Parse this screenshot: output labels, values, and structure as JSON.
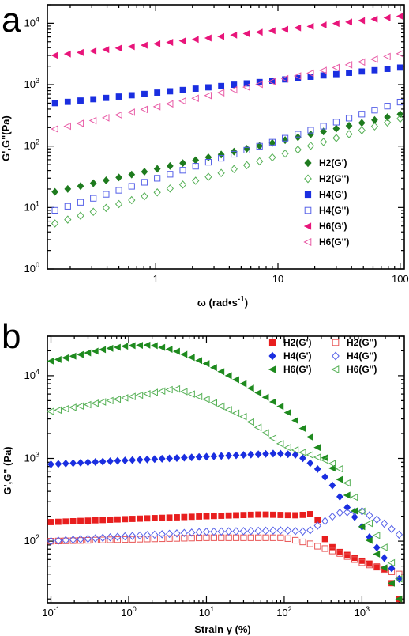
{
  "chart_data": [
    {
      "panel_label": "a",
      "type": "scatter",
      "xscale": "log",
      "yscale": "log",
      "xlim": [
        0.13,
        108
      ],
      "ylim": [
        1,
        20000
      ],
      "xlabel": "ω  (rad•s",
      "xlabel_sup": "-1",
      "xlabel_end": ")",
      "ylabel": "G',G\"(Pa)",
      "xticks": [
        {
          "value": 1,
          "base": "1",
          "exp": ""
        },
        {
          "value": 10,
          "base": "10",
          "exp": ""
        },
        {
          "value": 100,
          "base": "100",
          "exp": ""
        }
      ],
      "yticks": [
        {
          "value": 1,
          "base": "10",
          "exp": "0"
        },
        {
          "value": 10,
          "base": "10",
          "exp": "1"
        },
        {
          "value": 100,
          "base": "10",
          "exp": "2"
        },
        {
          "value": 1000,
          "base": "10",
          "exp": "3"
        },
        {
          "value": 10000,
          "base": "10",
          "exp": "4"
        }
      ],
      "legend_position": "right",
      "gen": {
        "x_start": 0.15,
        "x_end": 100,
        "n": 28
      },
      "series": [
        {
          "name": "H2(G')",
          "marker": "diamond",
          "filled": true,
          "color": "#1e7b1e",
          "y_start": 18,
          "y_end": 330
        },
        {
          "name": "H2(G'')",
          "marker": "diamond",
          "filled": false,
          "color": "#55b055",
          "y_start": 5.5,
          "y_end": 280
        },
        {
          "name": "H4(G')",
          "marker": "square",
          "filled": true,
          "color": "#1a2ee0",
          "y_start": 500,
          "y_end": 1900
        },
        {
          "name": "H4(G'')",
          "marker": "square",
          "filled": false,
          "color": "#5560e8",
          "y_start": 9,
          "y_end": 520
        },
        {
          "name": "H6(G')",
          "marker": "triangle-left",
          "filled": true,
          "color": "#e8157a",
          "y_start": 3000,
          "y_end": 13000
        },
        {
          "name": "H6(G'')",
          "marker": "triangle-left",
          "filled": false,
          "color": "#e85aa5",
          "y_start": 190,
          "y_end": 3200
        }
      ]
    },
    {
      "panel_label": "b",
      "type": "scatter",
      "xscale": "log",
      "yscale": "log",
      "xlim": [
        0.09,
        3500
      ],
      "ylim": [
        18,
        30000
      ],
      "xlabel": "Strain γ (%)",
      "ylabel": "G',G\" (Pa)",
      "xticks": [
        {
          "value": 0.1,
          "base": "10",
          "exp": "-1"
        },
        {
          "value": 1,
          "base": "10",
          "exp": "0"
        },
        {
          "value": 10,
          "base": "10",
          "exp": "1"
        },
        {
          "value": 100,
          "base": "10",
          "exp": "2"
        },
        {
          "value": 1000,
          "base": "10",
          "exp": "3"
        }
      ],
      "yticks": [
        {
          "value": 100,
          "base": "10",
          "exp": "2"
        },
        {
          "value": 1000,
          "base": "10",
          "exp": "3"
        },
        {
          "value": 10000,
          "base": "10",
          "exp": "4"
        }
      ],
      "legend_position": "top-right",
      "gen": {
        "x_start": 0.1,
        "x_end": 3000,
        "n": 48
      },
      "series": [
        {
          "name": "H2(G')",
          "marker": "square",
          "filled": true,
          "color": "#e81e1e",
          "profile": [
            [
              0.1,
              170
            ],
            [
              1,
              185
            ],
            [
              10,
              200
            ],
            [
              50,
              210
            ],
            [
              150,
              205
            ],
            [
              250,
              215
            ],
            [
              350,
              95
            ],
            [
              500,
              75
            ],
            [
              1000,
              58
            ],
            [
              2000,
              45
            ],
            [
              3000,
              20
            ]
          ]
        },
        {
          "name": "H2(G'')",
          "marker": "square",
          "filled": false,
          "color": "#e85555",
          "profile": [
            [
              0.1,
              100
            ],
            [
              1,
              105
            ],
            [
              10,
              110
            ],
            [
              100,
              110
            ],
            [
              200,
              95
            ],
            [
              500,
              72
            ],
            [
              1000,
              55
            ],
            [
              2000,
              45
            ],
            [
              3000,
              40
            ]
          ]
        },
        {
          "name": "H4(G')",
          "marker": "diamond",
          "filled": true,
          "color": "#1a2ee0",
          "profile": [
            [
              0.1,
              850
            ],
            [
              1,
              950
            ],
            [
              10,
              1050
            ],
            [
              80,
              1150
            ],
            [
              150,
              1100
            ],
            [
              250,
              800
            ],
            [
              400,
              500
            ],
            [
              600,
              280
            ],
            [
              1000,
              150
            ],
            [
              2000,
              60
            ],
            [
              3000,
              35
            ]
          ]
        },
        {
          "name": "H4(G'')",
          "marker": "diamond",
          "filled": false,
          "color": "#5560e8",
          "profile": [
            [
              0.1,
              100
            ],
            [
              1,
              115
            ],
            [
              10,
              130
            ],
            [
              100,
              135
            ],
            [
              200,
              130
            ],
            [
              500,
              220
            ],
            [
              1000,
              230
            ],
            [
              2000,
              160
            ],
            [
              3000,
              120
            ]
          ]
        },
        {
          "name": "H6(G')",
          "marker": "triangle-left",
          "filled": true,
          "color": "#1e8a1e",
          "profile": [
            [
              0.1,
              15000
            ],
            [
              0.5,
              21000
            ],
            [
              1,
              23000
            ],
            [
              2,
              23500
            ],
            [
              4,
              20000
            ],
            [
              10,
              14000
            ],
            [
              30,
              8000
            ],
            [
              100,
              4000
            ],
            [
              200,
              2000
            ],
            [
              500,
              600
            ],
            [
              1000,
              150
            ],
            [
              2000,
              45
            ],
            [
              3000,
              20
            ]
          ]
        },
        {
          "name": "H6(G'')",
          "marker": "triangle-left",
          "filled": false,
          "color": "#55b055",
          "profile": [
            [
              0.1,
              3700
            ],
            [
              1,
              5500
            ],
            [
              4,
              7000
            ],
            [
              10,
              5200
            ],
            [
              30,
              3200
            ],
            [
              100,
              1400
            ],
            [
              300,
              1000
            ],
            [
              500,
              800
            ],
            [
              1000,
              230
            ],
            [
              2000,
              80
            ],
            [
              3000,
              35
            ]
          ]
        }
      ]
    }
  ]
}
